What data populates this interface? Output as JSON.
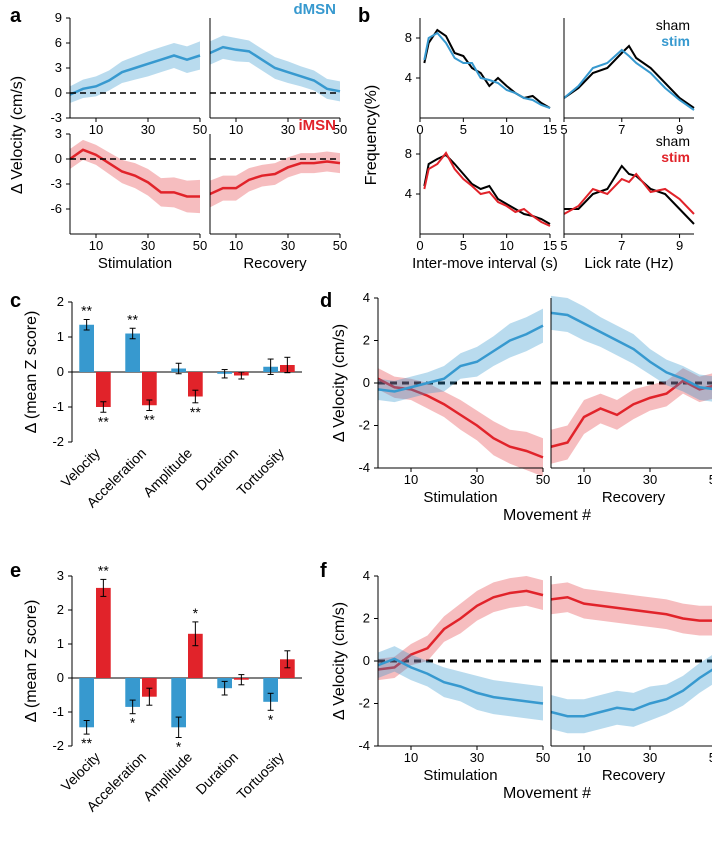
{
  "colors": {
    "blue": "#3799cf",
    "blue_fill": "rgba(55,153,207,0.35)",
    "red": "#e1232a",
    "red_fill": "rgba(225,35,42,0.30)",
    "black": "#000000",
    "axis": "#000000",
    "bg": "#ffffff"
  },
  "labels": {
    "a": "a",
    "b": "b",
    "c": "c",
    "d": "d",
    "e": "e",
    "f": "f",
    "dMSN": "dMSN",
    "iMSN": "iMSN",
    "sham": "sham",
    "stim": "stim"
  },
  "panel_a": {
    "ylabel": "Δ Velocity (cm/s)",
    "x_ticks": [
      10,
      30,
      50
    ],
    "sub_xlabels": [
      "Stimulation",
      "Recovery"
    ],
    "top": {
      "ylim": [
        -3,
        9
      ],
      "y_ticks": [
        -3,
        0,
        3,
        6,
        9
      ],
      "stim": {
        "x": [
          0,
          5,
          10,
          15,
          20,
          25,
          30,
          35,
          40,
          45,
          50
        ],
        "y": [
          -0.2,
          0.5,
          0.8,
          1.5,
          2.5,
          3.0,
          3.5,
          4.0,
          4.5,
          4.0,
          4.5
        ],
        "err": [
          1.0,
          1.1,
          1.2,
          1.2,
          1.3,
          1.4,
          1.5,
          1.5,
          1.5,
          1.6,
          1.7
        ]
      },
      "recov": {
        "x": [
          0,
          5,
          10,
          15,
          20,
          25,
          30,
          35,
          40,
          45,
          50
        ],
        "y": [
          4.8,
          5.5,
          5.2,
          5.0,
          4.0,
          3.0,
          2.5,
          2.0,
          1.5,
          0.5,
          0.2
        ],
        "err": [
          1.4,
          1.4,
          1.4,
          1.3,
          1.3,
          1.3,
          1.3,
          1.2,
          1.2,
          1.2,
          1.2
        ]
      }
    },
    "bottom": {
      "ylim": [
        -9,
        3
      ],
      "y_ticks": [
        -6,
        -3,
        0,
        3
      ],
      "stim": {
        "x": [
          0,
          5,
          10,
          15,
          20,
          25,
          30,
          35,
          40,
          45,
          50
        ],
        "y": [
          0.0,
          1.1,
          0.5,
          -0.5,
          -1.5,
          -2.0,
          -2.8,
          -4.0,
          -4.0,
          -4.5,
          -4.5
        ],
        "err": [
          1.2,
          1.2,
          1.2,
          1.3,
          1.4,
          1.5,
          1.6,
          1.7,
          1.8,
          1.9,
          2.0
        ]
      },
      "recov": {
        "x": [
          0,
          5,
          10,
          15,
          20,
          25,
          30,
          35,
          40,
          45,
          50
        ],
        "y": [
          -4.2,
          -3.5,
          -3.5,
          -2.5,
          -2.0,
          -1.8,
          -1.0,
          -0.5,
          -0.5,
          -0.3,
          -0.5
        ],
        "err": [
          1.6,
          1.5,
          1.5,
          1.4,
          1.3,
          1.3,
          1.2,
          1.2,
          1.2,
          1.2,
          1.2
        ]
      }
    }
  },
  "panel_b": {
    "ylabel": "Frequency(%)",
    "left_xlabel": "Inter-move interval (s)",
    "right_xlabel": "Lick rate (Hz)",
    "top": {
      "left": {
        "xlim": [
          0,
          15
        ],
        "x_ticks": [
          0,
          5,
          10,
          15
        ],
        "ylim": [
          0,
          10
        ],
        "y_ticks": [
          4,
          8
        ],
        "sham": {
          "x": [
            0.5,
            1,
            2,
            3,
            4,
            5,
            6,
            7,
            8,
            9,
            10,
            11,
            12,
            13,
            14,
            15
          ],
          "y": [
            5.5,
            7.5,
            8.8,
            8.2,
            6.5,
            6.2,
            5.0,
            4.5,
            3.2,
            4.0,
            3.2,
            2.5,
            2.0,
            2.2,
            1.5,
            1.0
          ]
        },
        "stim": {
          "x": [
            0.5,
            1,
            2,
            3,
            4,
            5,
            6,
            7,
            8,
            9,
            10,
            11,
            12,
            13,
            14,
            15
          ],
          "y": [
            5.8,
            8.0,
            8.5,
            7.5,
            6.0,
            5.5,
            5.5,
            4.0,
            3.8,
            3.5,
            2.8,
            2.5,
            2.0,
            1.8,
            1.3,
            1.0
          ]
        }
      },
      "right": {
        "xlim": [
          5,
          9.5
        ],
        "x_ticks": [
          5,
          7,
          9
        ],
        "ylim": [
          0,
          10
        ],
        "sham": {
          "x": [
            5,
            5.5,
            6,
            6.5,
            7,
            7.25,
            7.5,
            8,
            8.5,
            9,
            9.5
          ],
          "y": [
            2.0,
            3.0,
            4.5,
            5.0,
            6.5,
            7.2,
            6.0,
            5.0,
            3.5,
            2.0,
            1.0
          ]
        },
        "stim": {
          "x": [
            5,
            5.5,
            6,
            6.5,
            7,
            7.25,
            7.5,
            8,
            8.5,
            9,
            9.5
          ],
          "y": [
            2.0,
            3.2,
            5.0,
            5.5,
            6.8,
            6.2,
            5.5,
            4.5,
            3.0,
            1.8,
            0.8
          ]
        }
      }
    },
    "bottom": {
      "left": {
        "sham": {
          "x": [
            0.5,
            1,
            2,
            3,
            4,
            5,
            6,
            7,
            8,
            9,
            10,
            11,
            12,
            13,
            14,
            15
          ],
          "y": [
            4.8,
            7.0,
            7.5,
            7.9,
            7.0,
            6.0,
            5.0,
            4.5,
            4.8,
            3.5,
            3.0,
            2.5,
            2.0,
            1.8,
            1.5,
            1.0
          ]
        },
        "stim": {
          "x": [
            0.5,
            1,
            2,
            3,
            4,
            5,
            6,
            7,
            8,
            9,
            10,
            11,
            12,
            13,
            14,
            15
          ],
          "y": [
            4.5,
            6.5,
            7.0,
            8.1,
            6.5,
            5.5,
            4.8,
            4.0,
            4.2,
            3.2,
            2.8,
            2.2,
            2.5,
            1.8,
            1.2,
            0.8
          ]
        }
      },
      "right": {
        "sham": {
          "x": [
            5,
            5.5,
            6,
            6.5,
            7,
            7.25,
            7.5,
            8,
            8.5,
            9,
            9.5
          ],
          "y": [
            2.5,
            2.5,
            4.0,
            4.5,
            6.8,
            6.0,
            5.8,
            4.5,
            4.0,
            2.5,
            1.0
          ]
        },
        "stim": {
          "x": [
            5,
            5.5,
            6,
            6.5,
            7,
            7.25,
            7.5,
            8,
            8.5,
            9,
            9.5
          ],
          "y": [
            2.0,
            2.8,
            4.5,
            4.0,
            5.5,
            5.2,
            6.0,
            4.2,
            4.5,
            3.5,
            2.0
          ]
        }
      }
    }
  },
  "panel_c": {
    "ylabel": "Δ (mean Z score)",
    "ylim": [
      -2,
      2
    ],
    "y_ticks": [
      -2,
      -1,
      0,
      1,
      2
    ],
    "categories": [
      "Velocity",
      "Acceleration",
      "Amplitude",
      "Duration",
      "Tortuosity"
    ],
    "blue": {
      "vals": [
        1.35,
        1.1,
        0.1,
        -0.05,
        0.15
      ],
      "err": [
        0.15,
        0.15,
        0.15,
        0.12,
        0.22
      ],
      "sig": [
        "**",
        "**",
        "",
        "",
        ""
      ]
    },
    "red": {
      "vals": [
        -1.0,
        -0.95,
        -0.7,
        -0.1,
        0.2
      ],
      "err": [
        0.15,
        0.15,
        0.18,
        0.1,
        0.22
      ],
      "sig": [
        "**",
        "**",
        "**",
        "",
        ""
      ]
    }
  },
  "panel_d": {
    "ylabel": "Δ Velocity (cm/s)",
    "xlabel": "Movement #",
    "sub_xlabels": [
      "Stimulation",
      "Recovery"
    ],
    "ylim": [
      -4,
      4
    ],
    "y_ticks": [
      -4,
      -2,
      0,
      2,
      4
    ],
    "x_ticks": [
      10,
      30,
      50
    ],
    "stim": {
      "blue": {
        "x": [
          0,
          5,
          10,
          15,
          20,
          25,
          30,
          35,
          40,
          45,
          50
        ],
        "y": [
          -0.3,
          -0.4,
          -0.2,
          0.0,
          0.2,
          0.8,
          1.0,
          1.5,
          2.0,
          2.3,
          2.7
        ],
        "err": [
          0.5,
          0.5,
          0.5,
          0.5,
          0.6,
          0.6,
          0.7,
          0.7,
          0.8,
          0.8,
          0.8
        ]
      },
      "red": {
        "x": [
          0,
          5,
          10,
          15,
          20,
          25,
          30,
          35,
          40,
          45,
          50
        ],
        "y": [
          0.2,
          -0.2,
          -0.3,
          -0.6,
          -1.0,
          -1.5,
          -2.0,
          -2.6,
          -3.0,
          -3.2,
          -3.5
        ],
        "err": [
          0.5,
          0.5,
          0.5,
          0.6,
          0.6,
          0.7,
          0.7,
          0.8,
          0.8,
          0.9,
          0.9
        ]
      }
    },
    "recov": {
      "blue": {
        "x": [
          0,
          5,
          10,
          15,
          20,
          25,
          30,
          35,
          40,
          45,
          50
        ],
        "y": [
          3.3,
          3.2,
          2.8,
          2.4,
          2.0,
          1.6,
          1.0,
          0.5,
          0.2,
          -0.2,
          -0.3
        ],
        "err": [
          0.8,
          0.8,
          0.8,
          0.7,
          0.7,
          0.7,
          0.6,
          0.6,
          0.6,
          0.6,
          0.6
        ]
      },
      "red": {
        "x": [
          0,
          5,
          10,
          15,
          20,
          25,
          30,
          35,
          40,
          45,
          50
        ],
        "y": [
          -3.0,
          -2.8,
          -1.6,
          -1.2,
          -1.5,
          -1.0,
          -0.7,
          -0.5,
          0.1,
          -0.3,
          -0.1
        ],
        "err": [
          0.8,
          0.8,
          0.8,
          0.7,
          0.7,
          0.7,
          0.6,
          0.6,
          0.6,
          0.6,
          0.6
        ]
      }
    }
  },
  "panel_e": {
    "ylabel": "Δ (mean Z score)",
    "ylim": [
      -2,
      3
    ],
    "y_ticks": [
      -2,
      -1,
      0,
      1,
      2,
      3
    ],
    "categories": [
      "Velocity",
      "Acceleration",
      "Amplitude",
      "Duration",
      "Tortuosity"
    ],
    "blue": {
      "vals": [
        -1.45,
        -0.85,
        -1.45,
        -0.3,
        -0.7
      ],
      "err": [
        0.2,
        0.2,
        0.3,
        0.2,
        0.25
      ],
      "sig": [
        "**",
        "*",
        "*",
        "",
        "*"
      ]
    },
    "red": {
      "vals": [
        2.65,
        -0.55,
        1.3,
        -0.05,
        0.55
      ],
      "err": [
        0.25,
        0.25,
        0.35,
        0.15,
        0.25
      ],
      "sig": [
        "**",
        "",
        "*",
        "",
        ""
      ]
    }
  },
  "panel_f": {
    "ylabel": "Δ Velocity (cm/s)",
    "xlabel": "Movement #",
    "sub_xlabels": [
      "Stimulation",
      "Recovery"
    ],
    "ylim": [
      -4,
      4
    ],
    "y_ticks": [
      -4,
      -2,
      0,
      2,
      4
    ],
    "x_ticks": [
      10,
      30,
      50
    ],
    "stim": {
      "blue": {
        "x": [
          0,
          5,
          10,
          15,
          20,
          25,
          30,
          35,
          40,
          45,
          50
        ],
        "y": [
          -0.2,
          0.1,
          -0.3,
          -0.6,
          -1.0,
          -1.2,
          -1.5,
          -1.7,
          -1.8,
          -1.9,
          -2.0
        ],
        "err": [
          0.6,
          0.6,
          0.6,
          0.6,
          0.7,
          0.7,
          0.8,
          0.8,
          0.8,
          0.8,
          0.8
        ]
      },
      "red": {
        "x": [
          0,
          5,
          10,
          15,
          20,
          25,
          30,
          35,
          40,
          45,
          50
        ],
        "y": [
          -0.4,
          -0.3,
          0.3,
          0.6,
          1.5,
          2.0,
          2.6,
          3.0,
          3.2,
          3.3,
          3.1
        ],
        "err": [
          0.5,
          0.5,
          0.5,
          0.6,
          0.6,
          0.7,
          0.7,
          0.7,
          0.7,
          0.7,
          0.7
        ]
      }
    },
    "recov": {
      "blue": {
        "x": [
          0,
          5,
          10,
          15,
          20,
          25,
          30,
          35,
          40,
          45,
          50
        ],
        "y": [
          -2.4,
          -2.6,
          -2.6,
          -2.4,
          -2.2,
          -2.3,
          -2.0,
          -1.8,
          -1.4,
          -0.8,
          -0.3
        ],
        "err": [
          0.8,
          0.8,
          0.8,
          0.8,
          0.8,
          0.8,
          0.8,
          0.7,
          0.7,
          0.7,
          0.7
        ]
      },
      "red": {
        "x": [
          0,
          5,
          10,
          15,
          20,
          25,
          30,
          35,
          40,
          45,
          50
        ],
        "y": [
          2.9,
          3.0,
          2.7,
          2.6,
          2.5,
          2.4,
          2.3,
          2.2,
          2.0,
          1.9,
          1.9
        ],
        "err": [
          0.7,
          0.7,
          0.7,
          0.7,
          0.7,
          0.7,
          0.7,
          0.7,
          0.7,
          0.7,
          0.7
        ]
      }
    }
  }
}
